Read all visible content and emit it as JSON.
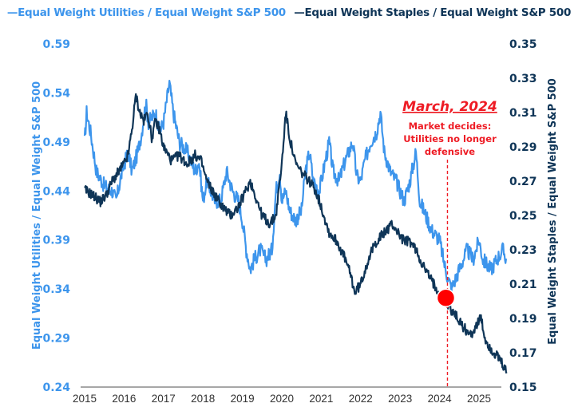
{
  "chart_data": {
    "type": "line",
    "title": "",
    "legend": {
      "placement": "top-center",
      "entries": [
        {
          "label": "—Equal Weight Utilities / Equal Weight S&P 500",
          "color": "#3d95ec"
        },
        {
          "label": "—Equal Weight Staples / Equal Weight S&P 500",
          "color": "#0f3557"
        }
      ]
    },
    "xlabel": "",
    "x_ticks": [
      "2015",
      "2016",
      "2017",
      "2018",
      "2019",
      "2020",
      "2021",
      "2022",
      "2023",
      "2024",
      "2025"
    ],
    "xlim": [
      2015,
      2025.8
    ],
    "y_left": {
      "label": "Equal Weight Utilities / Equal Weight S&P 500",
      "color": "#3d95ec",
      "ylim": [
        0.24,
        0.59
      ],
      "ticks": [
        "0.59",
        "0.54",
        "0.49",
        "0.44",
        "0.39",
        "0.34",
        "0.29",
        "0.24"
      ]
    },
    "y_right": {
      "label": "Equal Weight Staples / Equal Weight S&P 500",
      "color": "#0f3557",
      "ylim": [
        0.15,
        0.35
      ],
      "ticks": [
        "0.35",
        "0.33",
        "0.31",
        "0.29",
        "0.27",
        "0.25",
        "0.23",
        "0.21",
        "0.19",
        "0.17",
        "0.15"
      ]
    },
    "grid": false,
    "series": [
      {
        "name": "Equal Weight Utilities / Equal Weight S&P 500",
        "axis": "left",
        "color": "#3d95ec",
        "points": [
          [
            2015.0,
            0.49
          ],
          [
            2015.05,
            0.52
          ],
          [
            2015.15,
            0.5
          ],
          [
            2015.3,
            0.46
          ],
          [
            2015.5,
            0.445
          ],
          [
            2015.7,
            0.44
          ],
          [
            2015.8,
            0.43
          ],
          [
            2015.95,
            0.46
          ],
          [
            2016.1,
            0.48
          ],
          [
            2016.2,
            0.46
          ],
          [
            2016.35,
            0.48
          ],
          [
            2016.45,
            0.5
          ],
          [
            2016.55,
            0.53
          ],
          [
            2016.62,
            0.51
          ],
          [
            2016.8,
            0.52
          ],
          [
            2016.9,
            0.5
          ],
          [
            2017.0,
            0.51
          ],
          [
            2017.15,
            0.55
          ],
          [
            2017.25,
            0.52
          ],
          [
            2017.4,
            0.49
          ],
          [
            2017.6,
            0.48
          ],
          [
            2017.8,
            0.46
          ],
          [
            2017.9,
            0.47
          ],
          [
            2018.0,
            0.43
          ],
          [
            2018.1,
            0.45
          ],
          [
            2018.2,
            0.44
          ],
          [
            2018.3,
            0.43
          ],
          [
            2018.45,
            0.43
          ],
          [
            2018.6,
            0.46
          ],
          [
            2018.75,
            0.44
          ],
          [
            2018.9,
            0.43
          ],
          [
            2019.0,
            0.41
          ],
          [
            2019.1,
            0.38
          ],
          [
            2019.2,
            0.36
          ],
          [
            2019.3,
            0.37
          ],
          [
            2019.45,
            0.38
          ],
          [
            2019.6,
            0.37
          ],
          [
            2019.75,
            0.38
          ],
          [
            2019.85,
            0.44
          ],
          [
            2019.95,
            0.46
          ],
          [
            2020.0,
            0.43
          ],
          [
            2020.1,
            0.44
          ],
          [
            2020.2,
            0.42
          ],
          [
            2020.35,
            0.41
          ],
          [
            2020.5,
            0.42
          ],
          [
            2020.6,
            0.46
          ],
          [
            2020.7,
            0.48
          ],
          [
            2020.8,
            0.45
          ],
          [
            2020.95,
            0.44
          ],
          [
            2021.1,
            0.47
          ],
          [
            2021.2,
            0.49
          ],
          [
            2021.3,
            0.46
          ],
          [
            2021.45,
            0.45
          ],
          [
            2021.6,
            0.47
          ],
          [
            2021.8,
            0.49
          ],
          [
            2021.9,
            0.455
          ],
          [
            2022.0,
            0.45
          ],
          [
            2022.1,
            0.47
          ],
          [
            2022.25,
            0.49
          ],
          [
            2022.4,
            0.5
          ],
          [
            2022.5,
            0.52
          ],
          [
            2022.6,
            0.48
          ],
          [
            2022.75,
            0.46
          ],
          [
            2022.9,
            0.45
          ],
          [
            2023.0,
            0.44
          ],
          [
            2023.1,
            0.43
          ],
          [
            2023.25,
            0.45
          ],
          [
            2023.4,
            0.48
          ],
          [
            2023.5,
            0.43
          ],
          [
            2023.6,
            0.42
          ],
          [
            2023.8,
            0.4
          ],
          [
            2024.0,
            0.39
          ],
          [
            2024.15,
            0.36
          ],
          [
            2024.3,
            0.34
          ],
          [
            2024.5,
            0.36
          ],
          [
            2024.7,
            0.38
          ],
          [
            2024.85,
            0.37
          ],
          [
            2025.0,
            0.39
          ],
          [
            2025.1,
            0.37
          ],
          [
            2025.3,
            0.36
          ],
          [
            2025.45,
            0.37
          ],
          [
            2025.6,
            0.38
          ],
          [
            2025.7,
            0.37
          ]
        ]
      },
      {
        "name": "Equal Weight Staples / Equal Weight S&P 500",
        "axis": "right",
        "color": "#0f3557",
        "points": [
          [
            2015.0,
            0.265
          ],
          [
            2015.2,
            0.262
          ],
          [
            2015.4,
            0.258
          ],
          [
            2015.55,
            0.262
          ],
          [
            2015.7,
            0.27
          ],
          [
            2015.85,
            0.275
          ],
          [
            2016.0,
            0.28
          ],
          [
            2016.1,
            0.285
          ],
          [
            2016.2,
            0.3
          ],
          [
            2016.3,
            0.32
          ],
          [
            2016.4,
            0.31
          ],
          [
            2016.5,
            0.305
          ],
          [
            2016.6,
            0.31
          ],
          [
            2016.7,
            0.295
          ],
          [
            2016.8,
            0.305
          ],
          [
            2016.9,
            0.3
          ],
          [
            2017.0,
            0.29
          ],
          [
            2017.2,
            0.282
          ],
          [
            2017.4,
            0.285
          ],
          [
            2017.6,
            0.28
          ],
          [
            2017.8,
            0.285
          ],
          [
            2017.95,
            0.282
          ],
          [
            2018.1,
            0.27
          ],
          [
            2018.3,
            0.262
          ],
          [
            2018.5,
            0.255
          ],
          [
            2018.7,
            0.25
          ],
          [
            2018.9,
            0.255
          ],
          [
            2019.0,
            0.26
          ],
          [
            2019.1,
            0.265
          ],
          [
            2019.2,
            0.27
          ],
          [
            2019.35,
            0.26
          ],
          [
            2019.5,
            0.25
          ],
          [
            2019.7,
            0.245
          ],
          [
            2019.85,
            0.25
          ],
          [
            2020.0,
            0.28
          ],
          [
            2020.1,
            0.31
          ],
          [
            2020.2,
            0.295
          ],
          [
            2020.35,
            0.28
          ],
          [
            2020.5,
            0.275
          ],
          [
            2020.7,
            0.27
          ],
          [
            2020.85,
            0.265
          ],
          [
            2021.0,
            0.255
          ],
          [
            2021.2,
            0.24
          ],
          [
            2021.4,
            0.235
          ],
          [
            2021.6,
            0.225
          ],
          [
            2021.75,
            0.215
          ],
          [
            2021.85,
            0.205
          ],
          [
            2022.0,
            0.21
          ],
          [
            2022.2,
            0.225
          ],
          [
            2022.4,
            0.235
          ],
          [
            2022.6,
            0.24
          ],
          [
            2022.8,
            0.245
          ],
          [
            2022.95,
            0.24
          ],
          [
            2023.1,
            0.235
          ],
          [
            2023.25,
            0.235
          ],
          [
            2023.4,
            0.23
          ],
          [
            2023.6,
            0.22
          ],
          [
            2023.8,
            0.212
          ],
          [
            2024.0,
            0.205
          ],
          [
            2024.2,
            0.198
          ],
          [
            2024.4,
            0.192
          ],
          [
            2024.6,
            0.185
          ],
          [
            2024.8,
            0.18
          ],
          [
            2024.9,
            0.185
          ],
          [
            2025.05,
            0.19
          ],
          [
            2025.15,
            0.178
          ],
          [
            2025.3,
            0.172
          ],
          [
            2025.45,
            0.168
          ],
          [
            2025.55,
            0.165
          ],
          [
            2025.7,
            0.158
          ]
        ]
      }
    ],
    "annotations": [
      {
        "title": "March, 2024",
        "text_lines": [
          "Market decides:",
          "Utilities no longer",
          "defensive"
        ],
        "x": 2024.2,
        "marker_value_right_axis": 0.202,
        "color": "#ee1c25"
      }
    ]
  }
}
